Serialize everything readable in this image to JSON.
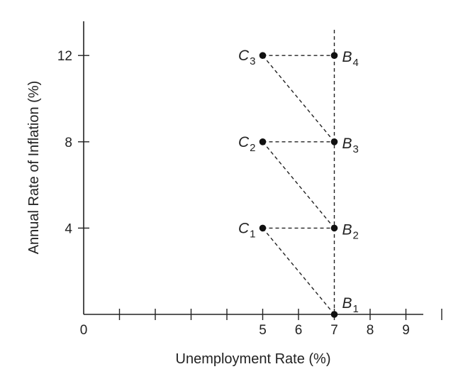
{
  "chart_data": {
    "type": "scatter",
    "title": "",
    "xlabel": "Unemployment Rate (%)",
    "ylabel": "Annual Rate of Inflation (%)",
    "xlim": [
      0,
      10
    ],
    "ylim": [
      0,
      14
    ],
    "origin_label": "0",
    "x_ticks": [
      1,
      2,
      3,
      4,
      5,
      6,
      7,
      8,
      9,
      10
    ],
    "x_tick_labels": [
      {
        "x": 5,
        "label": "5"
      },
      {
        "x": 6,
        "label": "6"
      },
      {
        "x": 7,
        "label": "7"
      },
      {
        "x": 8,
        "label": "8"
      },
      {
        "x": 9,
        "label": "9"
      }
    ],
    "y_ticks": [
      4,
      8,
      12
    ],
    "y_tick_labels": [
      {
        "y": 4,
        "label": "4"
      },
      {
        "y": 8,
        "label": "8"
      },
      {
        "y": 12,
        "label": "12"
      }
    ],
    "points": [
      {
        "id": "B1",
        "letter": "B",
        "sub": "1",
        "x": 7,
        "y": 0,
        "label_side": "right"
      },
      {
        "id": "B2",
        "letter": "B",
        "sub": "2",
        "x": 7,
        "y": 4,
        "label_side": "right"
      },
      {
        "id": "B3",
        "letter": "B",
        "sub": "3",
        "x": 7,
        "y": 8,
        "label_side": "right"
      },
      {
        "id": "B4",
        "letter": "B",
        "sub": "4",
        "x": 7,
        "y": 12,
        "label_side": "right"
      },
      {
        "id": "C1",
        "letter": "C",
        "sub": "1",
        "x": 5,
        "y": 4,
        "label_side": "left"
      },
      {
        "id": "C2",
        "letter": "C",
        "sub": "2",
        "x": 5,
        "y": 8,
        "label_side": "left"
      },
      {
        "id": "C3",
        "letter": "C",
        "sub": "3",
        "x": 5,
        "y": 12,
        "label_side": "left"
      }
    ],
    "dashed_segments": [
      {
        "from": "B1",
        "to": "C1"
      },
      {
        "from": "C1",
        "to": "B2"
      },
      {
        "from": "B2",
        "to": "C2"
      },
      {
        "from": "C2",
        "to": "B3"
      },
      {
        "from": "B3",
        "to": "C3"
      },
      {
        "from": "C3",
        "to": "B4"
      }
    ],
    "vertical_line": {
      "x": 7,
      "style": "dashed",
      "y_top": 13.2
    },
    "grid": false,
    "legend": "none",
    "colors": {
      "axis": "#222222",
      "point": "#111111",
      "dash": "#222222"
    }
  }
}
